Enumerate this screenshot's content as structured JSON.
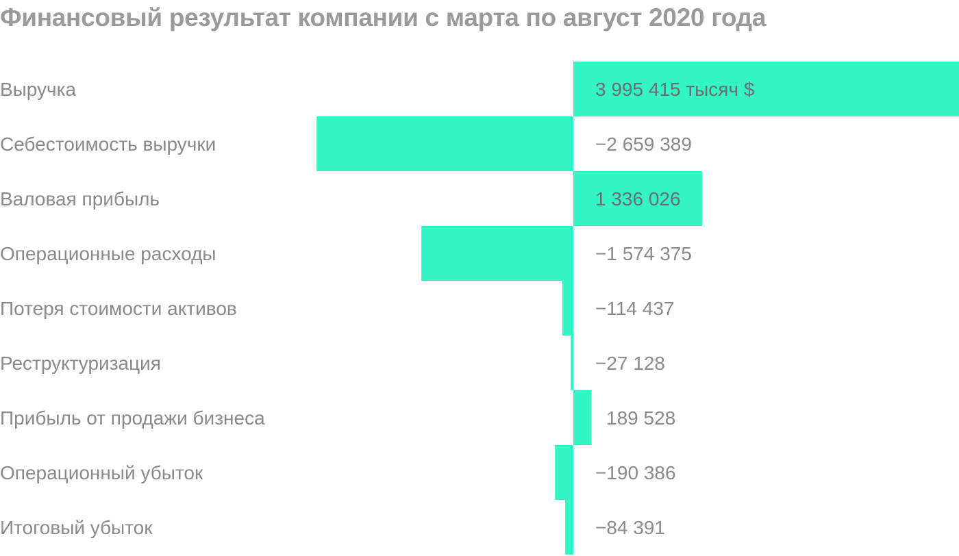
{
  "chart_data": {
    "type": "bar",
    "orientation": "horizontal",
    "title": "Финансовый результат компании с марта по август 2020 года",
    "unit": "тысяч $",
    "bar_color": "#33f5c5",
    "categories": [
      "Выручка",
      "Себестоимость выручки",
      "Валовая прибыль",
      "Операционные расходы",
      "Потеря стоимости активов",
      "Реструктуризация",
      "Прибыль от продажи бизнеса",
      "Операционный убыток",
      "Итоговый убыток"
    ],
    "values": [
      3995415,
      -2659389,
      1336026,
      -1574375,
      -114437,
      -27128,
      189528,
      -190386,
      -84391
    ],
    "value_labels": [
      "3 995 415 тысяч $",
      "−2 659 389",
      "1 336 026",
      "−1 574 375",
      "−114 437",
      "−27 128",
      "189 528",
      "−190 386",
      "−84 391"
    ]
  }
}
